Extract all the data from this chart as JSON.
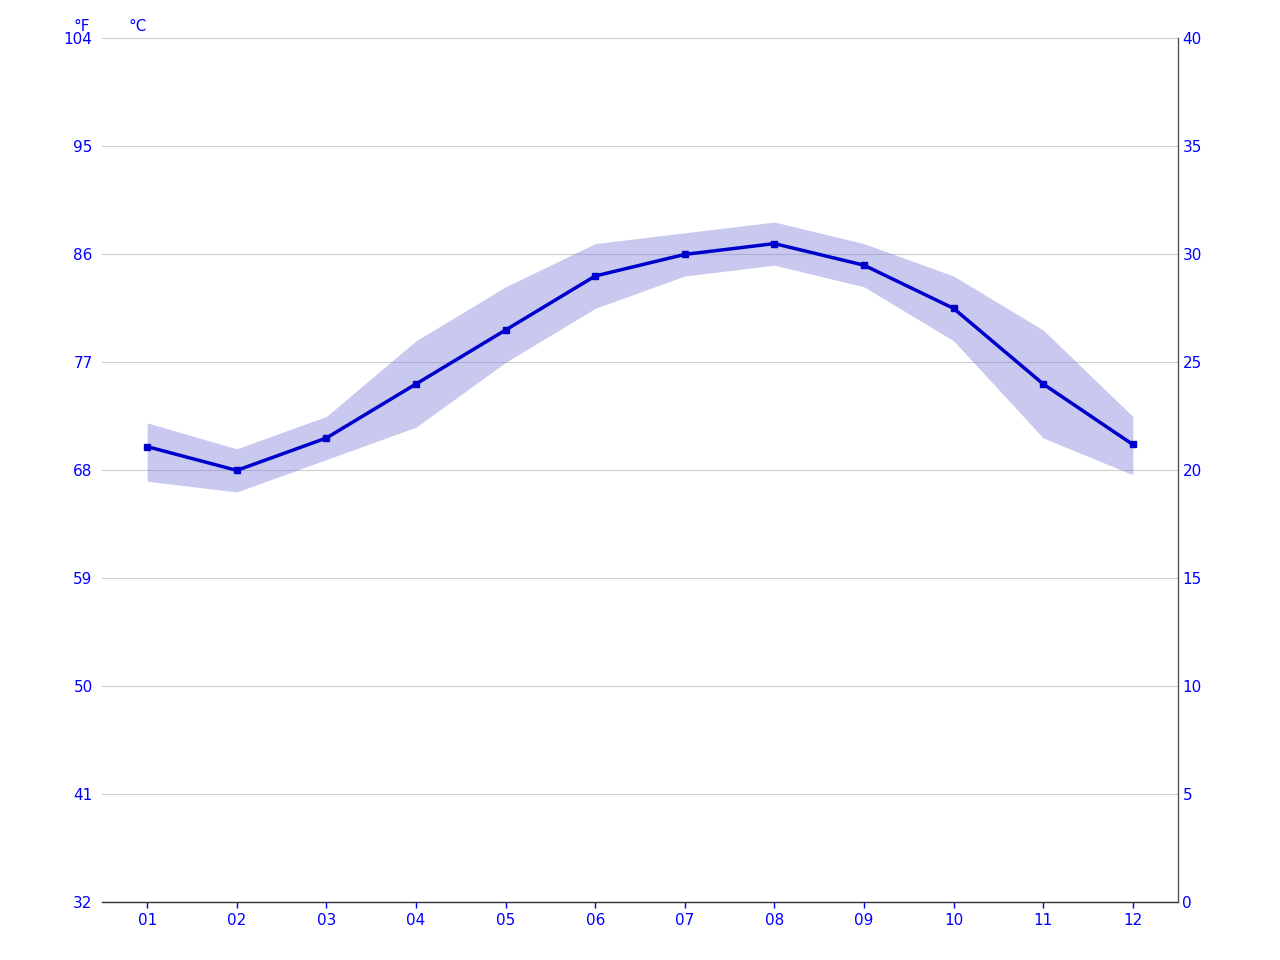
{
  "months": [
    1,
    2,
    3,
    4,
    5,
    6,
    7,
    8,
    9,
    10,
    11,
    12
  ],
  "month_labels": [
    "01",
    "02",
    "03",
    "04",
    "05",
    "06",
    "07",
    "08",
    "09",
    "10",
    "11",
    "12"
  ],
  "mean_temp_c": [
    21.1,
    20.0,
    21.5,
    24.0,
    26.5,
    29.0,
    30.0,
    30.5,
    29.5,
    27.5,
    24.0,
    21.2
  ],
  "upper_band_c": [
    22.2,
    21.0,
    22.5,
    26.0,
    28.5,
    30.5,
    31.0,
    31.5,
    30.5,
    29.0,
    26.5,
    22.5
  ],
  "lower_band_c": [
    19.5,
    19.0,
    20.5,
    22.0,
    25.0,
    27.5,
    29.0,
    29.5,
    28.5,
    26.0,
    21.5,
    19.8
  ],
  "yticks_c": [
    0,
    5,
    10,
    15,
    20,
    25,
    30,
    35,
    40
  ],
  "yticks_f": [
    32,
    41,
    50,
    59,
    68,
    77,
    86,
    95,
    104
  ],
  "ylim_c": [
    0,
    40
  ],
  "xlim": [
    0.5,
    12.5
  ],
  "line_color": "#0000cc",
  "band_color": "#8888dd",
  "band_alpha": 0.45,
  "grid_color": "#cccccc",
  "axis_color": "#0000ff",
  "background_color": "#ffffff",
  "line_width": 2.5,
  "marker_size": 4,
  "marker_style": "s",
  "spine_color": "#333333",
  "right_spine_color": "#555555"
}
